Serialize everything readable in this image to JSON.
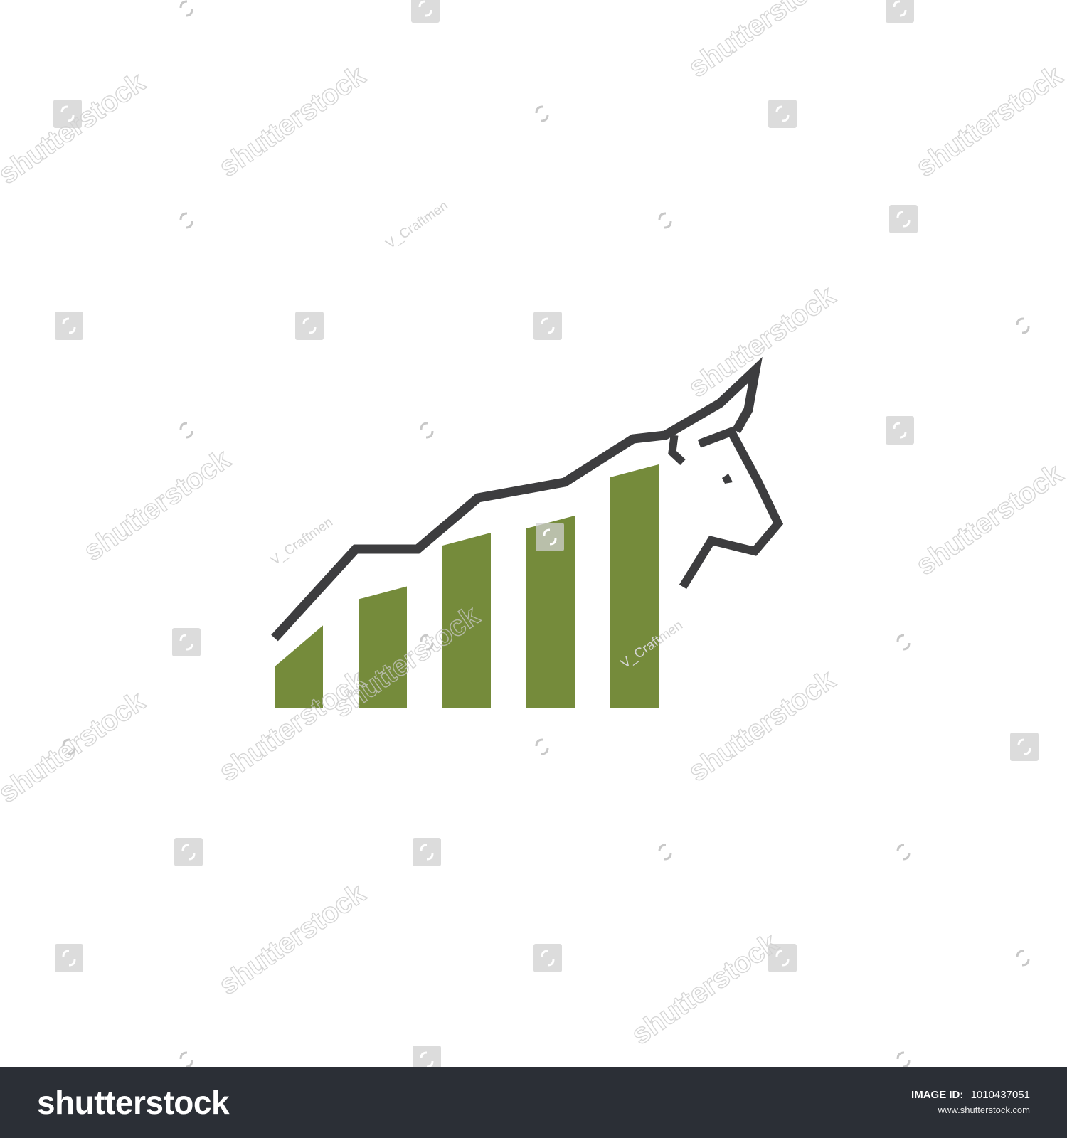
{
  "artwork": {
    "subject": "bull-head-with-rising-bar-chart",
    "colors": {
      "background": "#ffffff",
      "bars": "#758b3b",
      "outline": "#3d3d3f",
      "watermark": "#c9c9c9"
    },
    "bar_levels": [
      0.34,
      0.5,
      0.72,
      0.79,
      1.0
    ]
  },
  "watermarks": {
    "stock_text": "shutterstock",
    "author_text": "V_Craftmen"
  },
  "footer": {
    "logo": "shutterstock",
    "image_id_label": "IMAGE ID:",
    "image_id_value": "1010437051",
    "site_url": "www.shutterstock.com",
    "background_color": "#2b2f36"
  }
}
